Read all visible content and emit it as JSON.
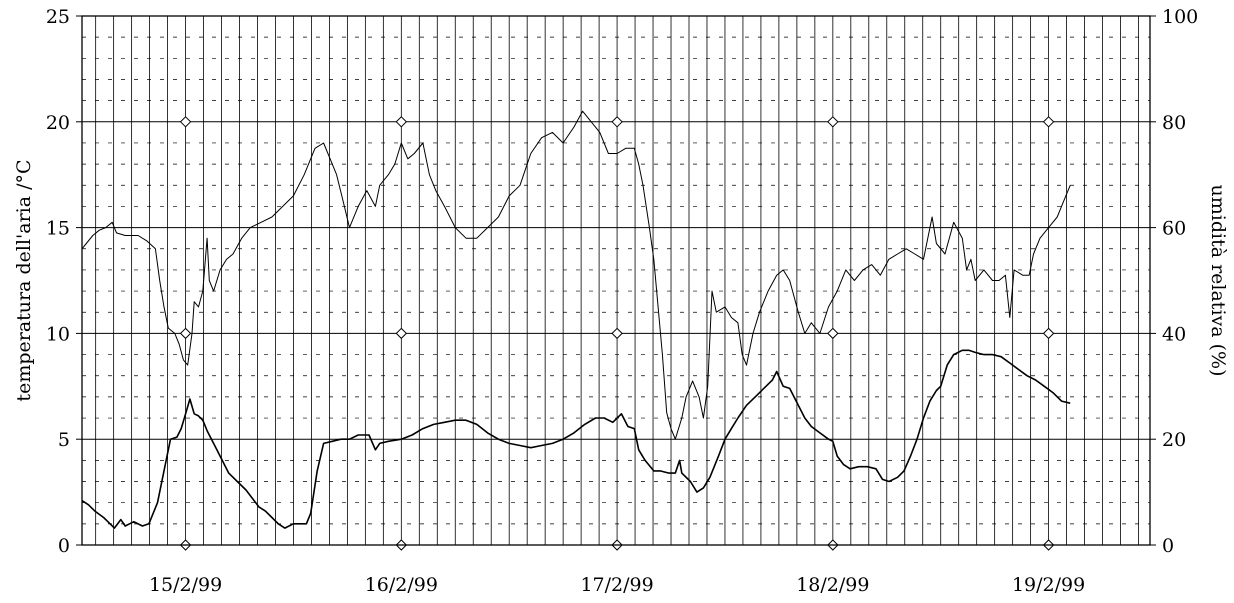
{
  "chart_data": {
    "type": "line",
    "title": "",
    "xlabel": "",
    "ylabel": "temperatura dell'aria  /°C",
    "y2label": "umidità relativa (%)",
    "x_tick_labels": [
      "15/2/99",
      "16/2/99",
      "17/2/99",
      "18/2/99",
      "19/2/99"
    ],
    "y_ticks": [
      0,
      5,
      10,
      15,
      20,
      25
    ],
    "y2_ticks": [
      0,
      20,
      40,
      60,
      80,
      100
    ],
    "ylim": [
      0,
      25
    ],
    "y2lim": [
      0,
      100
    ],
    "xlim_days": [
      14.52,
      19.47
    ],
    "grid": true,
    "day_marker_y": [
      0,
      10,
      20
    ],
    "series": [
      {
        "axis": "left",
        "values": [
          [
            14.52,
            2.1
          ],
          [
            14.55,
            1.9
          ],
          [
            14.58,
            1.6
          ],
          [
            14.62,
            1.3
          ],
          [
            14.64,
            1.1
          ],
          [
            14.67,
            0.8
          ],
          [
            14.7,
            1.2
          ],
          [
            14.72,
            0.9
          ],
          [
            14.76,
            1.1
          ],
          [
            14.8,
            0.9
          ],
          [
            14.83,
            1.0
          ],
          [
            14.87,
            2.0
          ],
          [
            14.9,
            3.5
          ],
          [
            14.93,
            5.0
          ],
          [
            14.96,
            5.1
          ],
          [
            14.98,
            5.5
          ],
          [
            15.0,
            6.2
          ],
          [
            15.02,
            6.9
          ],
          [
            15.04,
            6.2
          ],
          [
            15.06,
            6.1
          ],
          [
            15.08,
            5.9
          ],
          [
            15.1,
            5.4
          ],
          [
            15.13,
            4.8
          ],
          [
            15.16,
            4.2
          ],
          [
            15.18,
            3.8
          ],
          [
            15.2,
            3.4
          ],
          [
            15.24,
            3.0
          ],
          [
            15.28,
            2.6
          ],
          [
            15.31,
            2.2
          ],
          [
            15.34,
            1.8
          ],
          [
            15.37,
            1.6
          ],
          [
            15.4,
            1.3
          ],
          [
            15.43,
            1.0
          ],
          [
            15.46,
            0.8
          ],
          [
            15.5,
            1.0
          ],
          [
            15.53,
            1.0
          ],
          [
            15.56,
            1.0
          ],
          [
            15.58,
            1.5
          ],
          [
            15.61,
            3.5
          ],
          [
            15.64,
            4.8
          ],
          [
            15.68,
            4.9
          ],
          [
            15.72,
            5.0
          ],
          [
            15.76,
            5.0
          ],
          [
            15.8,
            5.2
          ],
          [
            15.85,
            5.2
          ],
          [
            15.88,
            4.5
          ],
          [
            15.9,
            4.8
          ],
          [
            15.94,
            4.9
          ],
          [
            16.0,
            5.0
          ],
          [
            16.05,
            5.2
          ],
          [
            16.1,
            5.5
          ],
          [
            16.15,
            5.7
          ],
          [
            16.2,
            5.8
          ],
          [
            16.25,
            5.9
          ],
          [
            16.3,
            5.9
          ],
          [
            16.35,
            5.7
          ],
          [
            16.4,
            5.3
          ],
          [
            16.45,
            5.0
          ],
          [
            16.5,
            4.8
          ],
          [
            16.55,
            4.7
          ],
          [
            16.6,
            4.6
          ],
          [
            16.65,
            4.7
          ],
          [
            16.7,
            4.8
          ],
          [
            16.75,
            5.0
          ],
          [
            16.8,
            5.3
          ],
          [
            16.85,
            5.7
          ],
          [
            16.9,
            6.0
          ],
          [
            16.94,
            6.0
          ],
          [
            16.98,
            5.8
          ],
          [
            17.02,
            6.2
          ],
          [
            17.05,
            5.6
          ],
          [
            17.08,
            5.5
          ],
          [
            17.1,
            4.5
          ],
          [
            17.13,
            4.0
          ],
          [
            17.17,
            3.5
          ],
          [
            17.2,
            3.5
          ],
          [
            17.24,
            3.4
          ],
          [
            17.27,
            3.4
          ],
          [
            17.29,
            4.0
          ],
          [
            17.3,
            3.4
          ],
          [
            17.34,
            3.0
          ],
          [
            17.37,
            2.5
          ],
          [
            17.4,
            2.7
          ],
          [
            17.43,
            3.2
          ],
          [
            17.47,
            4.2
          ],
          [
            17.5,
            5.0
          ],
          [
            17.53,
            5.5
          ],
          [
            17.56,
            6.0
          ],
          [
            17.6,
            6.6
          ],
          [
            17.64,
            7.0
          ],
          [
            17.68,
            7.4
          ],
          [
            17.72,
            7.8
          ],
          [
            17.74,
            8.2
          ],
          [
            17.77,
            7.5
          ],
          [
            17.8,
            7.4
          ],
          [
            17.84,
            6.6
          ],
          [
            17.87,
            6.0
          ],
          [
            17.9,
            5.6
          ],
          [
            17.94,
            5.3
          ],
          [
            17.98,
            5.0
          ],
          [
            18.0,
            4.9
          ],
          [
            18.02,
            4.2
          ],
          [
            18.05,
            3.8
          ],
          [
            18.08,
            3.6
          ],
          [
            18.12,
            3.7
          ],
          [
            18.16,
            3.7
          ],
          [
            18.2,
            3.6
          ],
          [
            18.23,
            3.1
          ],
          [
            18.26,
            3.0
          ],
          [
            18.3,
            3.2
          ],
          [
            18.33,
            3.5
          ],
          [
            18.36,
            4.2
          ],
          [
            18.39,
            5.0
          ],
          [
            18.42,
            6.0
          ],
          [
            18.45,
            6.8
          ],
          [
            18.48,
            7.3
          ],
          [
            18.5,
            7.5
          ],
          [
            18.53,
            8.5
          ],
          [
            18.56,
            9.0
          ],
          [
            18.6,
            9.2
          ],
          [
            18.63,
            9.2
          ],
          [
            18.66,
            9.1
          ],
          [
            18.7,
            9.0
          ],
          [
            18.74,
            9.0
          ],
          [
            18.78,
            8.9
          ],
          [
            18.82,
            8.6
          ],
          [
            18.86,
            8.3
          ],
          [
            18.9,
            8.0
          ],
          [
            18.94,
            7.8
          ],
          [
            18.98,
            7.5
          ],
          [
            19.02,
            7.2
          ],
          [
            19.06,
            6.8
          ],
          [
            19.1,
            6.7
          ]
        ]
      },
      {
        "axis": "right",
        "values": [
          [
            14.52,
            56
          ],
          [
            14.54,
            57
          ],
          [
            14.57,
            58.5
          ],
          [
            14.6,
            59.5
          ],
          [
            14.63,
            60
          ],
          [
            14.66,
            61
          ],
          [
            14.68,
            59
          ],
          [
            14.72,
            58.5
          ],
          [
            14.78,
            58.5
          ],
          [
            14.82,
            57.5
          ],
          [
            14.86,
            56
          ],
          [
            14.88,
            50
          ],
          [
            14.9,
            45
          ],
          [
            14.92,
            41
          ],
          [
            14.95,
            40
          ],
          [
            14.97,
            38
          ],
          [
            14.99,
            35
          ],
          [
            15.01,
            34
          ],
          [
            15.03,
            40
          ],
          [
            15.04,
            46
          ],
          [
            15.06,
            45
          ],
          [
            15.08,
            48
          ],
          [
            15.1,
            58
          ],
          [
            15.11,
            50
          ],
          [
            15.13,
            48
          ],
          [
            15.16,
            52
          ],
          [
            15.19,
            54
          ],
          [
            15.22,
            55
          ],
          [
            15.26,
            58
          ],
          [
            15.3,
            60
          ],
          [
            15.35,
            61
          ],
          [
            15.4,
            62
          ],
          [
            15.45,
            64
          ],
          [
            15.5,
            66
          ],
          [
            15.55,
            70
          ],
          [
            15.6,
            75
          ],
          [
            15.64,
            76
          ],
          [
            15.67,
            73
          ],
          [
            15.7,
            70
          ],
          [
            15.73,
            65
          ],
          [
            15.76,
            60
          ],
          [
            15.8,
            64
          ],
          [
            15.84,
            67
          ],
          [
            15.88,
            64
          ],
          [
            15.9,
            68
          ],
          [
            15.94,
            70
          ],
          [
            15.97,
            72
          ],
          [
            16.0,
            76
          ],
          [
            16.03,
            73
          ],
          [
            16.06,
            74
          ],
          [
            16.1,
            76
          ],
          [
            16.13,
            70
          ],
          [
            16.16,
            67
          ],
          [
            16.2,
            64
          ],
          [
            16.25,
            60
          ],
          [
            16.3,
            58
          ],
          [
            16.35,
            58
          ],
          [
            16.4,
            60
          ],
          [
            16.45,
            62
          ],
          [
            16.5,
            66
          ],
          [
            16.55,
            68
          ],
          [
            16.6,
            74
          ],
          [
            16.65,
            77
          ],
          [
            16.7,
            78
          ],
          [
            16.75,
            76
          ],
          [
            16.8,
            79
          ],
          [
            16.84,
            82
          ],
          [
            16.88,
            80
          ],
          [
            16.92,
            78
          ],
          [
            16.96,
            74
          ],
          [
            17.0,
            74
          ],
          [
            17.04,
            75
          ],
          [
            17.08,
            75
          ],
          [
            17.1,
            72
          ],
          [
            17.12,
            68
          ],
          [
            17.15,
            60
          ],
          [
            17.17,
            54
          ],
          [
            17.19,
            45
          ],
          [
            17.21,
            36
          ],
          [
            17.23,
            25
          ],
          [
            17.25,
            22
          ],
          [
            17.27,
            20
          ],
          [
            17.3,
            24
          ],
          [
            17.32,
            28
          ],
          [
            17.35,
            31
          ],
          [
            17.38,
            28
          ],
          [
            17.4,
            24
          ],
          [
            17.42,
            30
          ],
          [
            17.44,
            48
          ],
          [
            17.46,
            44
          ],
          [
            17.5,
            45
          ],
          [
            17.53,
            43
          ],
          [
            17.56,
            42
          ],
          [
            17.58,
            36
          ],
          [
            17.6,
            34
          ],
          [
            17.63,
            40
          ],
          [
            17.66,
            44
          ],
          [
            17.7,
            48
          ],
          [
            17.74,
            51
          ],
          [
            17.77,
            52
          ],
          [
            17.8,
            50
          ],
          [
            17.84,
            44
          ],
          [
            17.87,
            40
          ],
          [
            17.9,
            42
          ],
          [
            17.94,
            40
          ],
          [
            17.98,
            45
          ],
          [
            18.02,
            48
          ],
          [
            18.06,
            52
          ],
          [
            18.1,
            50
          ],
          [
            18.14,
            52
          ],
          [
            18.18,
            53
          ],
          [
            18.22,
            51
          ],
          [
            18.26,
            54
          ],
          [
            18.3,
            55
          ],
          [
            18.34,
            56
          ],
          [
            18.38,
            55
          ],
          [
            18.42,
            54
          ],
          [
            18.46,
            62
          ],
          [
            18.48,
            57
          ],
          [
            18.52,
            55
          ],
          [
            18.56,
            61
          ],
          [
            18.6,
            58
          ],
          [
            18.62,
            52
          ],
          [
            18.64,
            54
          ],
          [
            18.66,
            50
          ],
          [
            18.7,
            52
          ],
          [
            18.74,
            50
          ],
          [
            18.77,
            50
          ],
          [
            18.8,
            51
          ],
          [
            18.82,
            43
          ],
          [
            18.84,
            52
          ],
          [
            18.88,
            51
          ],
          [
            18.91,
            51
          ],
          [
            18.93,
            55
          ],
          [
            18.96,
            58
          ],
          [
            19.0,
            60
          ],
          [
            19.04,
            62
          ],
          [
            19.07,
            65
          ],
          [
            19.1,
            68
          ]
        ]
      }
    ]
  }
}
